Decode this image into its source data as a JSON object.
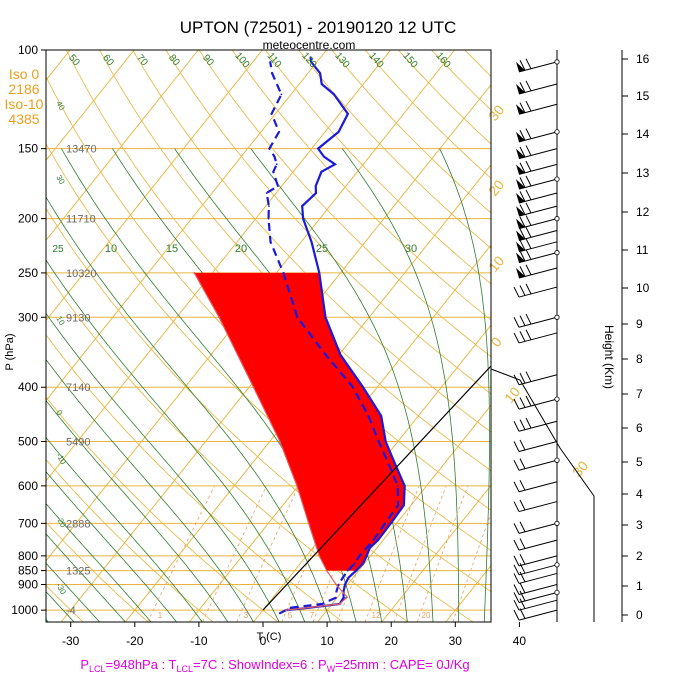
{
  "chart_data": {
    "type": "line",
    "title": "UPTON (72501) - 20190120 12 UTC",
    "subtitle": "meteocentre.com",
    "xlabel": "T (C)",
    "ylabel": "P (hPa)",
    "y2label": "Height (Km)",
    "xlim": [
      -35,
      45
    ],
    "ylim": [
      1050,
      100
    ],
    "y_scale": "log",
    "x_ticks": [
      "-30",
      "-20",
      "-10",
      "0",
      "10",
      "20",
      "30",
      "40"
    ],
    "pressure_ticks": [
      "100",
      "150",
      "200",
      "250",
      "300",
      "400",
      "500",
      "600",
      "700",
      "800",
      "850",
      "900",
      "1000"
    ],
    "height_ticks": [
      "0",
      "1",
      "2",
      "3",
      "4",
      "5",
      "6",
      "7",
      "8",
      "9",
      "10",
      "11",
      "12",
      "13",
      "14",
      "15",
      "16"
    ],
    "height_labels": [
      {
        "p": 150,
        "text": "13470"
      },
      {
        "p": 200,
        "text": "11710"
      },
      {
        "p": 250,
        "text": "10320"
      },
      {
        "p": 300,
        "text": "9130"
      },
      {
        "p": 400,
        "text": "7140"
      },
      {
        "p": 500,
        "text": "5490"
      },
      {
        "p": 700,
        "text": "2888"
      },
      {
        "p": 850,
        "text": "1325"
      },
      {
        "p": 1000,
        "text": "-4"
      }
    ],
    "isotherm_info": {
      "iso0_label": "Iso 0",
      "iso0_height": "2186",
      "iso10_label": "Iso-10",
      "iso10_height": "4385"
    },
    "mixing_ratio_labels": [
      "1",
      "3",
      "5",
      "7",
      "12",
      "20"
    ],
    "dry_adiabat_labels": [
      "-20",
      "-10",
      "0",
      "10",
      "20",
      "30",
      "40",
      "50",
      "60",
      "70",
      "80",
      "90",
      "100",
      "110",
      "120",
      "130",
      "140",
      "150",
      "160"
    ],
    "moist_adiabat_labels": [
      "10",
      "15",
      "20",
      "25",
      "30"
    ],
    "isotherm_labels": [
      "30",
      "20",
      "10",
      "0",
      "10",
      "30"
    ],
    "series": [
      {
        "name": "Temperature",
        "color": "#1a1adc",
        "points": [
          [
            1013,
            3
          ],
          [
            1000,
            3.6
          ],
          [
            990,
            7
          ],
          [
            975,
            11.2
          ],
          [
            950,
            11
          ],
          [
            925,
            10.2
          ],
          [
            900,
            9.6
          ],
          [
            875,
            9.3
          ],
          [
            850,
            9.6
          ],
          [
            825,
            9.8
          ],
          [
            800,
            9.4
          ],
          [
            775,
            8.9
          ],
          [
            750,
            9.2
          ],
          [
            700,
            9.1
          ],
          [
            650,
            8.9
          ],
          [
            600,
            6.6
          ],
          [
            550,
            2.5
          ],
          [
            500,
            -1.9
          ],
          [
            450,
            -5.8
          ],
          [
            400,
            -12.2
          ],
          [
            350,
            -19.8
          ],
          [
            300,
            -26.8
          ],
          [
            250,
            -33.3
          ],
          [
            220,
            -38.4
          ],
          [
            200,
            -42.6
          ],
          [
            190,
            -44.3
          ],
          [
            180,
            -43.8
          ],
          [
            175,
            -44.7
          ],
          [
            165,
            -45.6
          ],
          [
            160,
            -44.4
          ],
          [
            155,
            -47.1
          ],
          [
            150,
            -49.0
          ],
          [
            140,
            -47.9
          ],
          [
            130,
            -48.7
          ],
          [
            120,
            -53.3
          ],
          [
            115,
            -56.5
          ],
          [
            110,
            -58.1
          ],
          [
            105,
            -60.9
          ],
          [
            103,
            -61.6
          ]
        ]
      },
      {
        "name": "Dewpoint",
        "color": "#1a1adc",
        "points": [
          [
            990,
            4.0
          ],
          [
            975,
            8.4
          ],
          [
            950,
            9.8
          ],
          [
            925,
            9.1
          ],
          [
            900,
            8.6
          ],
          [
            875,
            8.4
          ],
          [
            850,
            8.3
          ],
          [
            825,
            8.5
          ],
          [
            800,
            8.3
          ],
          [
            775,
            8.4
          ],
          [
            750,
            8.5
          ],
          [
            700,
            8.2
          ],
          [
            650,
            8.0
          ],
          [
            600,
            5.5
          ],
          [
            550,
            1.5
          ],
          [
            500,
            -3.0
          ],
          [
            450,
            -7.8
          ],
          [
            400,
            -13.8
          ],
          [
            350,
            -22.1
          ],
          [
            300,
            -31.2
          ],
          [
            250,
            -38.9
          ],
          [
            220,
            -44.8
          ],
          [
            200,
            -48.0
          ],
          [
            190,
            -49.5
          ],
          [
            180,
            -51.5
          ],
          [
            175,
            -50.6
          ],
          [
            165,
            -53.1
          ],
          [
            160,
            -53.5
          ],
          [
            155,
            -54.8
          ],
          [
            150,
            -56.6
          ],
          [
            140,
            -57.2
          ],
          [
            130,
            -60.6
          ],
          [
            120,
            -61.5
          ],
          [
            110,
            -65.6
          ],
          [
            105,
            -67.3
          ]
        ]
      },
      {
        "name": "Parcel",
        "color": "#e06060",
        "points": [
          [
            1000,
            3.6
          ],
          [
            975,
            11.2
          ],
          [
            948,
            11.5
          ],
          [
            900,
            8.2
          ],
          [
            850,
            5.0
          ],
          [
            800,
            2.0
          ],
          [
            700,
            -3.7
          ],
          [
            600,
            -10.2
          ],
          [
            500,
            -18.4
          ],
          [
            400,
            -29.3
          ],
          [
            300,
            -43.4
          ],
          [
            250,
            -52.8
          ]
        ]
      }
    ],
    "cape_area": {
      "color": "#ff0000",
      "from_p": 250,
      "to_p": 850
    },
    "cin_area": {
      "color": "#2288dd",
      "from_p": 1000,
      "to_p": 948
    },
    "wind_barbs_hidden_count": 0,
    "footer": "P_LCL=948hPa : T_LCL=7C : ShowIndex=6 : P_W=25mm : CAPE= 0J/Kg",
    "footer_parts": {
      "plcl": "P",
      "plcl_sub": "LCL",
      "plcl_val": "=948hPa : T",
      "tlcl_sub": "LCL",
      "tlcl_val": "=7C : ShowIndex=6 : P",
      "pw_sub": "W",
      "pw_val": "=25mm : CAPE= 0J/Kg"
    },
    "colors": {
      "isobar": "#e8b53c",
      "isotherm": "#e8b53c",
      "dry_adiabat": "#e8b53c",
      "moist_adiabat": "#2e7d2e",
      "mixing_ratio": "#e8a060",
      "footer_text": "#e000e0",
      "height_label": "#6b6b6b",
      "isotherm_info": "#e8a020"
    }
  }
}
